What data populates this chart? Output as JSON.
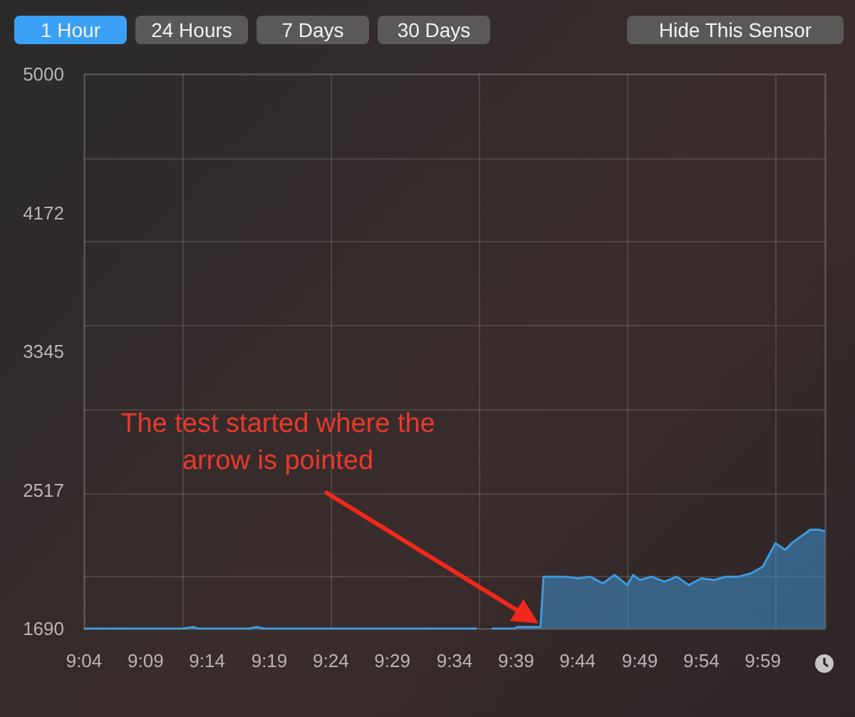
{
  "chart_data": {
    "type": "area",
    "x": [
      9.067,
      9.1,
      9.15,
      9.2,
      9.215,
      9.22,
      9.25,
      9.29,
      9.3,
      9.31,
      9.4,
      9.45,
      9.5,
      9.55,
      9.597,
      9.6,
      9.617,
      9.648,
      9.652,
      9.683,
      9.687,
      9.7,
      9.717,
      9.733,
      9.75,
      9.767,
      9.783,
      9.8,
      9.808,
      9.817,
      9.833,
      9.85,
      9.867,
      9.883,
      9.9,
      9.917,
      9.933,
      9.95,
      9.967,
      9.983,
      10.0,
      10.013,
      10.022,
      10.047,
      10.055,
      10.06,
      10.067
    ],
    "series": [
      {
        "color": "#3d9be0",
        "values": [
          1690,
          1690,
          1690,
          1690,
          1700,
          1690,
          1690,
          1690,
          1700,
          1690,
          1690,
          1690,
          1690,
          1690,
          1690,
          null,
          1690,
          1690,
          1700,
          1700,
          2000,
          2000,
          2000,
          1990,
          2000,
          1960,
          2010,
          1950,
          2010,
          1980,
          2000,
          1970,
          2000,
          1950,
          1990,
          1980,
          2000,
          2000,
          2020,
          2060,
          2200,
          2160,
          2200,
          2280,
          2280,
          2280,
          2270
        ]
      }
    ],
    "xlim": [
      9.067,
      10.067
    ],
    "xticks": [
      {
        "value": 9.067,
        "label": "9:04"
      },
      {
        "value": 9.15,
        "label": "9:09"
      },
      {
        "value": 9.233,
        "label": "9:14"
      },
      {
        "value": 9.317,
        "label": "9:19"
      },
      {
        "value": 9.4,
        "label": "9:24"
      },
      {
        "value": 9.483,
        "label": "9:29"
      },
      {
        "value": 9.567,
        "label": "9:34"
      },
      {
        "value": 9.65,
        "label": "9:39"
      },
      {
        "value": 9.733,
        "label": "9:44"
      },
      {
        "value": 9.817,
        "label": "9:49"
      },
      {
        "value": 9.9,
        "label": "9:54"
      },
      {
        "value": 9.983,
        "label": "9:59"
      }
    ],
    "ylim": [
      1690,
      5000
    ],
    "yticks": [
      1690,
      2517,
      3345,
      4172,
      5000
    ],
    "grid": true,
    "marker": "none",
    "annotations": [
      "1 Hour",
      "24 Hours",
      "7 Days",
      "30 Days",
      "Hide This Sensor",
      {
        "text": "The test started where the arrow is pointed",
        "x": 9.683,
        "y": 1700
      }
    ]
  }
}
